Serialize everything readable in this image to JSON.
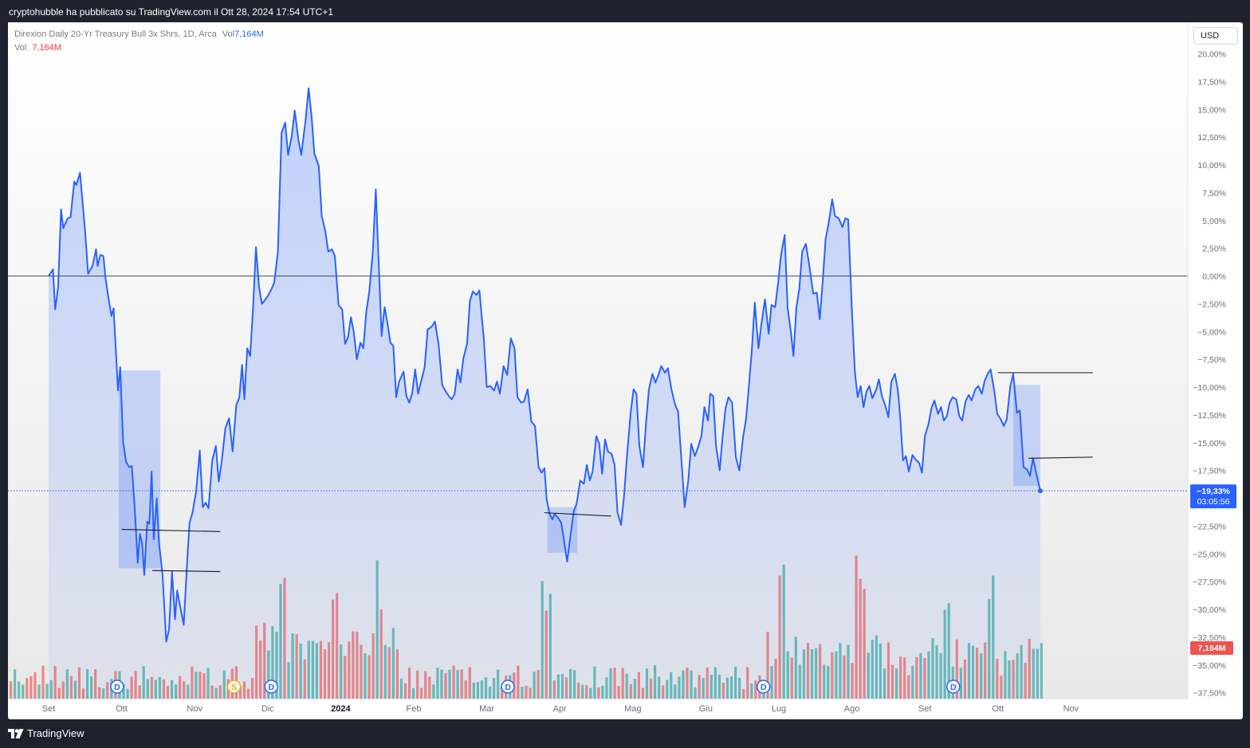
{
  "header": {
    "published": "cryptohubble ha pubblicato su TradingView.com il Ott 28, 2024 17:54 UTC+1"
  },
  "legend": {
    "symbol": "Direxion Daily 20-Yr Treasury Bull 3x Shrs, 1D, Arca",
    "vol_label": "Vol",
    "vol_value": "7,164M",
    "vol_row_label": "Vol",
    "vol_row_value": "7,164M"
  },
  "currency": "USD",
  "price_label": {
    "value": "−19,33%",
    "countdown": "03:05:56"
  },
  "volume_label": "7,164M",
  "event_markers": [
    {
      "label": "D",
      "x_date": "Ott",
      "color": "#2962ff"
    },
    {
      "label": "S",
      "x_date": "Dic",
      "color": "#f7a600"
    },
    {
      "label": "D",
      "x_date": "Dic",
      "color": "#2962ff"
    },
    {
      "label": "D",
      "x_date": "Mar",
      "color": "#2962ff"
    },
    {
      "label": "D",
      "x_date": "Giu",
      "color": "#2962ff"
    },
    {
      "label": "D",
      "x_date": "Set",
      "color": "#2962ff"
    }
  ],
  "footer": {
    "brand": "TradingView"
  },
  "colors": {
    "line": "#2962ff",
    "area": "#2962ff",
    "vol_up": "#26a69a",
    "vol_down": "#ef5350",
    "box": "#2962ff",
    "label_bg": "#2962ff"
  },
  "chart_data": {
    "type": "area",
    "title": "Direxion Daily 20-Yr Treasury Bull 3x Shrs, 1D, Arca",
    "ylabel": "%",
    "ylim": [
      -38.5,
      21
    ],
    "y_ticks": [
      20,
      17.5,
      15,
      12.5,
      10,
      7.5,
      5,
      2.5,
      0,
      -2.5,
      -5,
      -7.5,
      -10,
      -12.5,
      -15,
      -17.5,
      -20,
      -22.5,
      -25,
      -27.5,
      -30,
      -32.5,
      -35,
      -37.5
    ],
    "y_tick_labels": [
      "20,00%",
      "17,50%",
      "15,00%",
      "12,50%",
      "10,00%",
      "7,50%",
      "5,00%",
      "2,50%",
      "0,00%",
      "−2,50%",
      "−5,00%",
      "−7,50%",
      "−10,00%",
      "−12,50%",
      "−15,00%",
      "−17,50%",
      "",
      "−22,50%",
      "−25,00%",
      "−27,50%",
      "−30,00%",
      "−32,50%",
      "−35,00%",
      "−37,50%"
    ],
    "x_ticks": [
      {
        "label": "Set",
        "month": 0
      },
      {
        "label": "Ott",
        "month": 1
      },
      {
        "label": "Nov",
        "month": 2
      },
      {
        "label": "Dic",
        "month": 3
      },
      {
        "label": "2024",
        "month": 4,
        "bold": true
      },
      {
        "label": "Feb",
        "month": 5
      },
      {
        "label": "Mar",
        "month": 6
      },
      {
        "label": "Apr",
        "month": 7
      },
      {
        "label": "Mag",
        "month": 8
      },
      {
        "label": "Giu",
        "month": 9
      },
      {
        "label": "Lug",
        "month": 10
      },
      {
        "label": "Ago",
        "month": 11
      },
      {
        "label": "Set",
        "month": 12
      },
      {
        "label": "Ott",
        "month": 13
      },
      {
        "label": "Nov",
        "month": 14
      }
    ],
    "series_path": [
      [
        0,
        0
      ],
      [
        0.06,
        0.6
      ],
      [
        0.09,
        -3
      ],
      [
        0.13,
        -1
      ],
      [
        0.17,
        6
      ],
      [
        0.2,
        4.3
      ],
      [
        0.26,
        5.2
      ],
      [
        0.3,
        5.3
      ],
      [
        0.35,
        8.5
      ],
      [
        0.38,
        8.2
      ],
      [
        0.43,
        9.3
      ],
      [
        0.5,
        4
      ],
      [
        0.54,
        0.2
      ],
      [
        0.6,
        0.9
      ],
      [
        0.65,
        2.4
      ],
      [
        0.67,
        0.9
      ],
      [
        0.71,
        1.9
      ],
      [
        0.75,
        1.8
      ],
      [
        0.78,
        -0.2
      ],
      [
        0.82,
        -2
      ],
      [
        0.86,
        -3.6
      ],
      [
        0.89,
        -2.9
      ],
      [
        0.95,
        -10.3
      ],
      [
        0.98,
        -8.2
      ],
      [
        1.02,
        -14.9
      ],
      [
        1.06,
        -16.7
      ],
      [
        1.1,
        -17.2
      ],
      [
        1.14,
        -17.1
      ],
      [
        1.18,
        -21
      ],
      [
        1.22,
        -25.8
      ],
      [
        1.25,
        -23.2
      ],
      [
        1.28,
        -24
      ],
      [
        1.31,
        -26.9
      ],
      [
        1.35,
        -22.1
      ],
      [
        1.38,
        -22.3
      ],
      [
        1.41,
        -17.6
      ],
      [
        1.44,
        -23.7
      ],
      [
        1.48,
        -20
      ],
      [
        1.51,
        -23.9
      ],
      [
        1.56,
        -26.9
      ],
      [
        1.61,
        -32.9
      ],
      [
        1.65,
        -31.8
      ],
      [
        1.69,
        -26.6
      ],
      [
        1.73,
        -30.9
      ],
      [
        1.76,
        -28.3
      ],
      [
        1.8,
        -29.7
      ],
      [
        1.85,
        -31.4
      ],
      [
        1.9,
        -25.4
      ],
      [
        1.93,
        -22.2
      ],
      [
        1.97,
        -21.3
      ],
      [
        2.02,
        -19.4
      ],
      [
        2.07,
        -15.7
      ],
      [
        2.11,
        -20.8
      ],
      [
        2.15,
        -20.4
      ],
      [
        2.19,
        -20.9
      ],
      [
        2.24,
        -16.6
      ],
      [
        2.29,
        -15.3
      ],
      [
        2.33,
        -18.5
      ],
      [
        2.37,
        -16.7
      ],
      [
        2.42,
        -13.7
      ],
      [
        2.47,
        -12.8
      ],
      [
        2.52,
        -15.8
      ],
      [
        2.57,
        -11.6
      ],
      [
        2.61,
        -11
      ],
      [
        2.65,
        -8
      ],
      [
        2.68,
        -11.1
      ],
      [
        2.72,
        -6.5
      ],
      [
        2.76,
        -7.2
      ],
      [
        2.8,
        -2.8
      ],
      [
        2.84,
        2.6
      ],
      [
        2.88,
        -0.9
      ],
      [
        2.92,
        -2.5
      ],
      [
        2.96,
        -2.2
      ],
      [
        3.01,
        -1.7
      ],
      [
        3.05,
        -1.2
      ],
      [
        3.09,
        -0.6
      ],
      [
        3.14,
        2.2
      ],
      [
        3.19,
        12.9
      ],
      [
        3.24,
        13.8
      ],
      [
        3.28,
        10.9
      ],
      [
        3.33,
        12.6
      ],
      [
        3.37,
        14.9
      ],
      [
        3.42,
        12.3
      ],
      [
        3.46,
        10.9
      ],
      [
        3.52,
        14.1
      ],
      [
        3.56,
        16.9
      ],
      [
        3.6,
        14.4
      ],
      [
        3.64,
        11
      ],
      [
        3.7,
        9.9
      ],
      [
        3.74,
        5.4
      ],
      [
        3.79,
        4
      ],
      [
        3.83,
        2.2
      ],
      [
        3.88,
        2.4
      ],
      [
        3.92,
        1.8
      ],
      [
        3.97,
        -2.6
      ],
      [
        4.02,
        -3
      ],
      [
        4.06,
        -6.1
      ],
      [
        4.1,
        -5.5
      ],
      [
        4.14,
        -3.7
      ],
      [
        4.18,
        -5.1
      ],
      [
        4.22,
        -7.5
      ],
      [
        4.27,
        -6
      ],
      [
        4.31,
        -6.5
      ],
      [
        4.35,
        -3.2
      ],
      [
        4.39,
        -1.5
      ],
      [
        4.44,
        2.2
      ],
      [
        4.48,
        7.8
      ],
      [
        4.53,
        -0.4
      ],
      [
        4.56,
        -5.4
      ],
      [
        4.6,
        -2.8
      ],
      [
        4.64,
        -4.2
      ],
      [
        4.68,
        -6
      ],
      [
        4.72,
        -6.3
      ],
      [
        4.76,
        -10.9
      ],
      [
        4.8,
        -9.5
      ],
      [
        4.86,
        -8.6
      ],
      [
        4.9,
        -10.8
      ],
      [
        4.94,
        -11.4
      ],
      [
        4.98,
        -10.5
      ],
      [
        5.02,
        -8.4
      ],
      [
        5.06,
        -10.6
      ],
      [
        5.1,
        -9.5
      ],
      [
        5.15,
        -8.2
      ],
      [
        5.19,
        -4.8
      ],
      [
        5.24,
        -4.6
      ],
      [
        5.29,
        -4.1
      ],
      [
        5.34,
        -6.1
      ],
      [
        5.39,
        -9.8
      ],
      [
        5.44,
        -10.4
      ],
      [
        5.48,
        -10.8
      ],
      [
        5.52,
        -11.1
      ],
      [
        5.56,
        -10.6
      ],
      [
        5.6,
        -8.4
      ],
      [
        5.64,
        -9.6
      ],
      [
        5.68,
        -7.4
      ],
      [
        5.73,
        -6.1
      ],
      [
        5.77,
        -2.2
      ],
      [
        5.81,
        -1.4
      ],
      [
        5.86,
        -1.7
      ],
      [
        5.9,
        -1.3
      ],
      [
        5.93,
        -3.6
      ],
      [
        5.96,
        -5.6
      ],
      [
        6,
        -10
      ],
      [
        6.05,
        -9.9
      ],
      [
        6.1,
        -10.3
      ],
      [
        6.14,
        -9.5
      ],
      [
        6.18,
        -10.6
      ],
      [
        6.23,
        -8.1
      ],
      [
        6.28,
        -8.9
      ],
      [
        6.33,
        -5.6
      ],
      [
        6.38,
        -6.5
      ],
      [
        6.42,
        -10.9
      ],
      [
        6.47,
        -11.4
      ],
      [
        6.51,
        -11.3
      ],
      [
        6.56,
        -10.2
      ],
      [
        6.61,
        -13.1
      ],
      [
        6.66,
        -13.5
      ],
      [
        6.71,
        -17.2
      ],
      [
        6.75,
        -17.7
      ],
      [
        6.79,
        -17.3
      ],
      [
        6.82,
        -20.1
      ],
      [
        6.86,
        -21.4
      ],
      [
        6.9,
        -21.9
      ],
      [
        6.93,
        -21.4
      ],
      [
        6.98,
        -21.8
      ],
      [
        7.02,
        -22.2
      ],
      [
        7.06,
        -23.9
      ],
      [
        7.1,
        -25.7
      ],
      [
        7.14,
        -23.7
      ],
      [
        7.19,
        -21.2
      ],
      [
        7.23,
        -20.5
      ],
      [
        7.28,
        -18.4
      ],
      [
        7.33,
        -18.7
      ],
      [
        7.37,
        -17
      ],
      [
        7.41,
        -18.4
      ],
      [
        7.45,
        -17.6
      ],
      [
        7.5,
        -14.4
      ],
      [
        7.54,
        -15.1
      ],
      [
        7.58,
        -17.8
      ],
      [
        7.62,
        -14.7
      ],
      [
        7.66,
        -15.8
      ],
      [
        7.71,
        -16
      ],
      [
        7.75,
        -17
      ],
      [
        7.79,
        -21.3
      ],
      [
        7.84,
        -22.4
      ],
      [
        7.88,
        -19.8
      ],
      [
        7.92,
        -16.2
      ],
      [
        7.97,
        -12.3
      ],
      [
        8.01,
        -10.2
      ],
      [
        8.05,
        -10.6
      ],
      [
        8.09,
        -15.3
      ],
      [
        8.14,
        -17.2
      ],
      [
        8.18,
        -13.3
      ],
      [
        8.22,
        -10.2
      ],
      [
        8.27,
        -8.8
      ],
      [
        8.31,
        -9.6
      ],
      [
        8.35,
        -8.9
      ],
      [
        8.39,
        -8.1
      ],
      [
        8.44,
        -8.7
      ],
      [
        8.48,
        -8.3
      ],
      [
        8.53,
        -10.2
      ],
      [
        8.58,
        -11.6
      ],
      [
        8.62,
        -12.2
      ],
      [
        8.67,
        -17
      ],
      [
        8.71,
        -20.8
      ],
      [
        8.76,
        -18.4
      ],
      [
        8.8,
        -15.1
      ],
      [
        8.85,
        -16.2
      ],
      [
        8.89,
        -15.5
      ],
      [
        8.94,
        -14.4
      ],
      [
        8.98,
        -11.8
      ],
      [
        9.03,
        -13
      ],
      [
        9.06,
        -10.6
      ],
      [
        9.1,
        -10.8
      ],
      [
        9.14,
        -15.3
      ],
      [
        9.19,
        -17.5
      ],
      [
        9.23,
        -14.4
      ],
      [
        9.27,
        -11.9
      ],
      [
        9.31,
        -10.9
      ],
      [
        9.36,
        -11.4
      ],
      [
        9.41,
        -16.3
      ],
      [
        9.46,
        -17.5
      ],
      [
        9.51,
        -14.5
      ],
      [
        9.55,
        -12.9
      ],
      [
        9.59,
        -9.9
      ],
      [
        9.63,
        -6.7
      ],
      [
        9.67,
        -2.4
      ],
      [
        9.72,
        -6.5
      ],
      [
        9.76,
        -4.4
      ],
      [
        9.81,
        -2.1
      ],
      [
        9.86,
        -5.2
      ],
      [
        9.9,
        -2.6
      ],
      [
        9.95,
        -2.8
      ],
      [
        9.99,
        -0.6
      ],
      [
        10.03,
        1.9
      ],
      [
        10.08,
        3.7
      ],
      [
        10.12,
        -2.9
      ],
      [
        10.16,
        -4.8
      ],
      [
        10.2,
        -7.2
      ],
      [
        10.24,
        -2.8
      ],
      [
        10.28,
        -1.2
      ],
      [
        10.32,
        2.2
      ],
      [
        10.37,
        2.9
      ],
      [
        10.42,
        0.8
      ],
      [
        10.47,
        -1.6
      ],
      [
        10.52,
        -1.5
      ],
      [
        10.56,
        -3.9
      ],
      [
        10.6,
        -0.5
      ],
      [
        10.64,
        3.3
      ],
      [
        10.68,
        4.7
      ],
      [
        10.73,
        6.9
      ],
      [
        10.77,
        5.4
      ],
      [
        10.82,
        5.2
      ],
      [
        10.87,
        4.4
      ],
      [
        10.91,
        5.2
      ],
      [
        10.95,
        5.1
      ],
      [
        11,
        -3
      ],
      [
        11.04,
        -8.6
      ],
      [
        11.08,
        -10.9
      ],
      [
        11.12,
        -9.9
      ],
      [
        11.16,
        -11.8
      ],
      [
        11.2,
        -10.4
      ],
      [
        11.24,
        -9.9
      ],
      [
        11.28,
        -11
      ],
      [
        11.33,
        -10.3
      ],
      [
        11.37,
        -9.3
      ],
      [
        11.41,
        -10.8
      ],
      [
        11.46,
        -11.7
      ],
      [
        11.5,
        -12.7
      ],
      [
        11.54,
        -9.5
      ],
      [
        11.59,
        -8.8
      ],
      [
        11.63,
        -10.3
      ],
      [
        11.66,
        -12.6
      ],
      [
        11.7,
        -16.6
      ],
      [
        11.74,
        -16.2
      ],
      [
        11.78,
        -17.6
      ],
      [
        11.83,
        -16.1
      ],
      [
        11.87,
        -16.5
      ],
      [
        11.92,
        -16.8
      ],
      [
        11.96,
        -17.7
      ],
      [
        12,
        -14.4
      ],
      [
        12.05,
        -13.3
      ],
      [
        12.09,
        -11.9
      ],
      [
        12.13,
        -11.2
      ],
      [
        12.18,
        -12.4
      ],
      [
        12.22,
        -11.8
      ],
      [
        12.26,
        -13
      ],
      [
        12.3,
        -12.6
      ],
      [
        12.34,
        -11.4
      ],
      [
        12.38,
        -10.9
      ],
      [
        12.43,
        -11.1
      ],
      [
        12.47,
        -12.6
      ],
      [
        12.51,
        -13
      ],
      [
        12.56,
        -11.2
      ],
      [
        12.6,
        -10.7
      ],
      [
        12.64,
        -11.2
      ],
      [
        12.69,
        -10.2
      ],
      [
        12.73,
        -9.9
      ],
      [
        12.78,
        -10.6
      ],
      [
        12.82,
        -9.4
      ],
      [
        12.86,
        -8.8
      ],
      [
        12.9,
        -8.4
      ],
      [
        12.95,
        -10.3
      ],
      [
        12.99,
        -12.4
      ],
      [
        13.04,
        -12.9
      ],
      [
        13.08,
        -13.5
      ],
      [
        13.12,
        -12.9
      ],
      [
        13.17,
        -9.9
      ],
      [
        13.21,
        -8.8
      ],
      [
        13.26,
        -12.3
      ],
      [
        13.3,
        -12.1
      ],
      [
        13.35,
        -17.2
      ],
      [
        13.4,
        -17.4
      ],
      [
        13.44,
        -18
      ],
      [
        13.48,
        -16.4
      ],
      [
        13.53,
        -17.9
      ],
      [
        13.58,
        -19.33
      ]
    ],
    "boxes": [
      {
        "x0": 0.96,
        "x1": 1.53,
        "y0": -8.5,
        "y1": -26.3
      },
      {
        "x0": 6.83,
        "x1": 7.24,
        "y0": -20.8,
        "y1": -24.9
      },
      {
        "x0": 13.21,
        "x1": 13.58,
        "y0": -9.8,
        "y1": -18.9
      }
    ],
    "h_lines": [
      {
        "x0": 1,
        "x1": 2.35,
        "y0": -22.8,
        "y1": -23.0
      },
      {
        "x0": 1.42,
        "x1": 2.35,
        "y0": -26.5,
        "y1": -26.6
      },
      {
        "x0": 6.79,
        "x1": 7.7,
        "y0": -21.3,
        "y1": -21.6
      },
      {
        "x0": 13,
        "x1": 14.3,
        "y0": -8.7,
        "y1": -8.7
      },
      {
        "x0": 13.42,
        "x1": 14.3,
        "y0": -16.4,
        "y1": -16.3
      }
    ],
    "volume": {
      "max_label": "7,164M",
      "bars_seed": 28,
      "pattern": "mixed up/down daily volume bars, higher spikes around Dic, Gen, Feb, Apr, Lug, Ago, Set"
    }
  }
}
